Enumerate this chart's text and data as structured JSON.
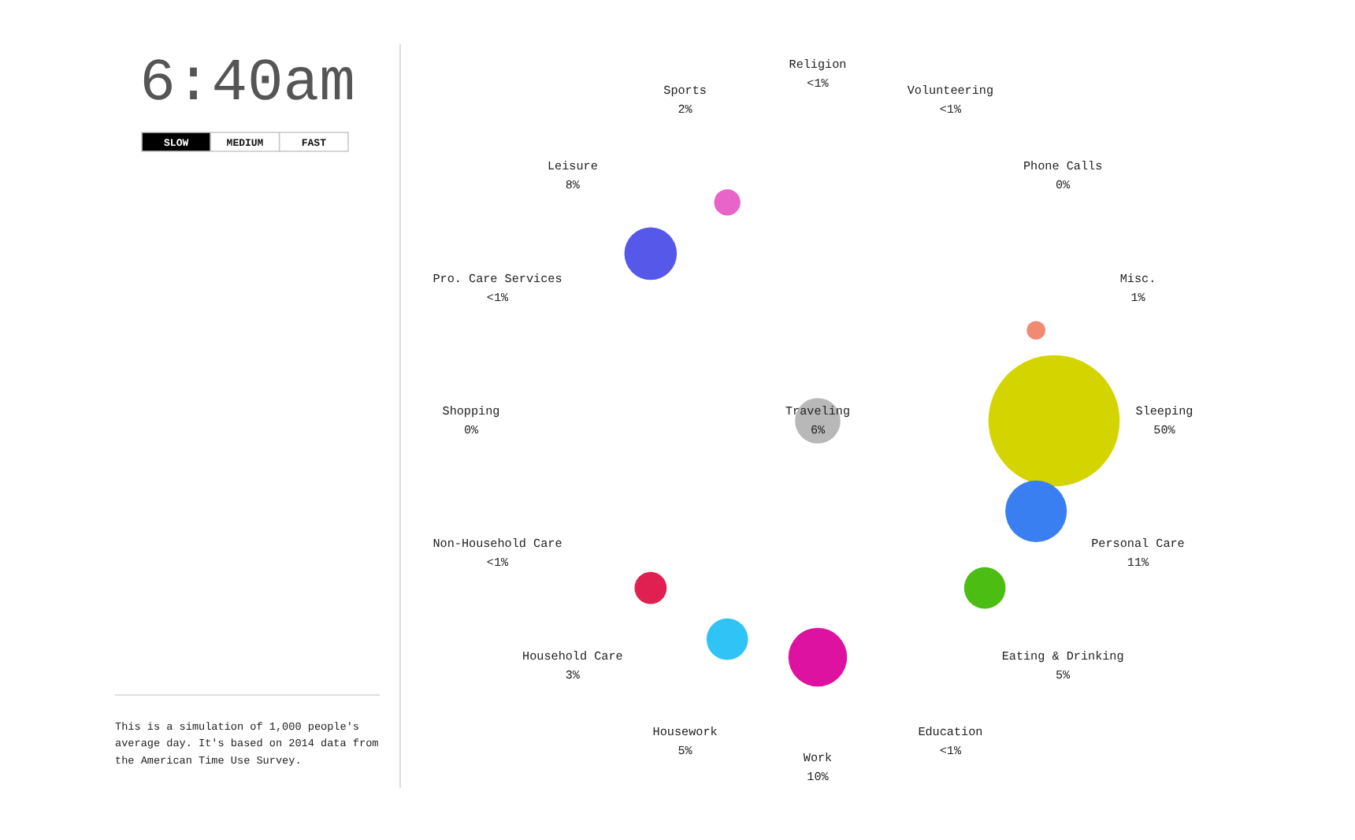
{
  "chart_data": [
    {
      "type": "other",
      "title": "6:40am",
      "annotations": [
        "SLOW",
        "MEDIUM",
        "FAST",
        "This is a simulation of 1,000 people's average day. It's based on 2014 data from the American Time Use Survey."
      ]
    },
    {
      "type": "other",
      "categories": [
        "Religion",
        "Volunteering",
        "Phone Calls",
        "Misc.",
        "Sleeping",
        "Personal Care",
        "Eating & Drinking",
        "Education",
        "Work",
        "Housework",
        "Household Care",
        "Non-Household Care",
        "Shopping",
        "Pro. Care Services",
        "Leisure",
        "Sports",
        "Traveling"
      ],
      "values": [
        null,
        null,
        0,
        1,
        50,
        11,
        5,
        null,
        10,
        5,
        3,
        null,
        0,
        null,
        8,
        2,
        6
      ],
      "value_labels": [
        "<1%",
        "<1%",
        "0%",
        "1%",
        "50%",
        "11%",
        "5%",
        "<1%",
        "10%",
        "5%",
        "3%",
        "<1%",
        "0%",
        "<1%",
        "8%",
        "2%",
        "6%"
      ],
      "colors": [
        null,
        null,
        null,
        "#f08a70",
        "#d4d400",
        "#3a7ff2",
        "#4cbd12",
        null,
        "#dd12a0",
        "#30c4f6",
        "#e02050",
        null,
        null,
        null,
        "#5558e8",
        "#e864c8",
        "#b8b8b8"
      ]
    }
  ]
}
